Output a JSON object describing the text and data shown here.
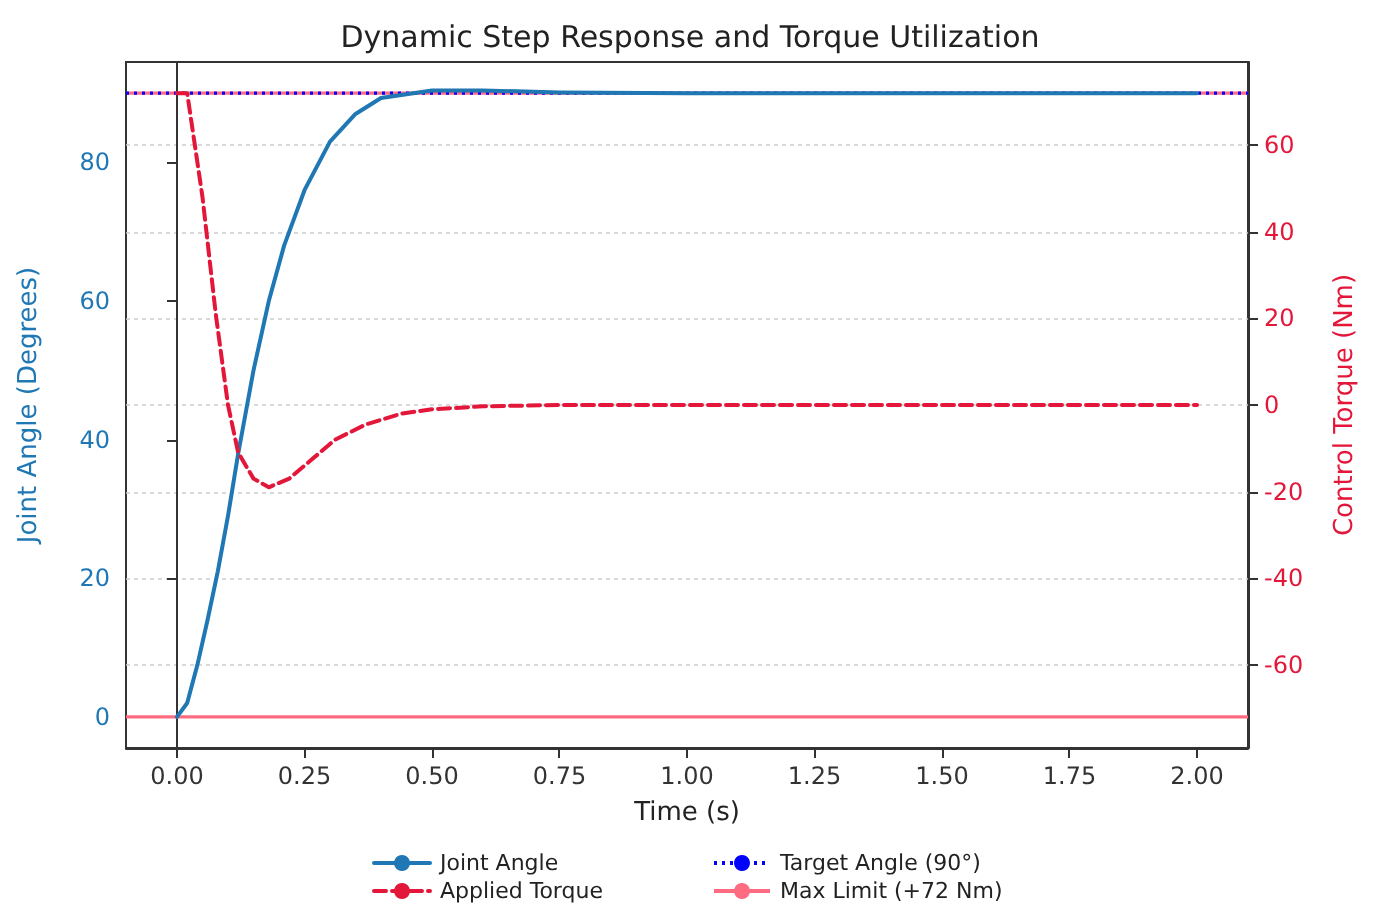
{
  "chart_data": {
    "type": "line",
    "title": "Dynamic Step Response and Torque Utilization",
    "xlabel": "Time (s)",
    "ylabel": "Joint Angle (Degrees)",
    "y2label": "Control Torque (Nm)",
    "xlim": [
      -0.1,
      2.1
    ],
    "xticks": [
      {
        "value": 0,
        "label": "0.00"
      },
      {
        "value": 0.25,
        "label": "0.25"
      },
      {
        "value": 0.5,
        "label": "0.50"
      },
      {
        "value": 0.75,
        "label": "0.75"
      },
      {
        "value": 1,
        "label": "1.00"
      },
      {
        "value": 1.25,
        "label": "1.25"
      },
      {
        "value": 1.5,
        "label": "1.50"
      },
      {
        "value": 1.75,
        "label": "1.75"
      },
      {
        "value": 2,
        "label": "2.00"
      }
    ],
    "ylim": [
      -4.5,
      94.5
    ],
    "yticks": [
      0,
      20,
      40,
      60,
      80
    ],
    "y2lim": [
      -79.2,
      79.2
    ],
    "y2ticks": [
      -60,
      -40,
      -20,
      0,
      20,
      40,
      60
    ],
    "grid": "y2",
    "legend": "bottom",
    "series": [
      {
        "name": "Joint Angle",
        "color": "#1f77b4",
        "line_style": "solid",
        "x": [
          0,
          0.02,
          0.04,
          0.06,
          0.08,
          0.1,
          0.12,
          0.15,
          0.18,
          0.21,
          0.25,
          0.3,
          0.35,
          0.4,
          0.5,
          0.6,
          0.75,
          1.0,
          1.5,
          2.0
        ],
        "values": [
          0,
          2,
          7.5,
          14,
          21,
          29,
          38,
          50,
          60,
          68,
          76,
          83,
          87,
          89.3,
          90.4,
          90.4,
          90.1,
          90,
          90,
          90
        ]
      },
      {
        "name": "Applied Torque",
        "color": "#e3173a",
        "line_style": "dashed",
        "axis": "y2",
        "x": [
          0,
          0.02,
          0.05,
          0.076,
          0.1,
          0.12,
          0.15,
          0.18,
          0.22,
          0.26,
          0.31,
          0.37,
          0.44,
          0.5,
          0.6,
          0.75,
          1.0,
          1.5,
          2.0
        ],
        "values": [
          72,
          72,
          48,
          21,
          0,
          -11,
          -17,
          -19,
          -17,
          -13,
          -8,
          -4.5,
          -2,
          -1,
          -0.3,
          0,
          0,
          0,
          0
        ]
      }
    ],
    "ref_lines": [
      {
        "axis": "y",
        "value": 90,
        "label": "Target Angle (90°)",
        "color": "#0000ff",
        "line_style": "dotted"
      },
      {
        "axis": "y2",
        "value": 72,
        "label": "Max Limit (+72 Nm)",
        "color": "#ff6b81",
        "line_style": "solid"
      },
      {
        "axis": "y2",
        "value": -72,
        "color": "#ff6b81",
        "line_style": "solid"
      }
    ]
  }
}
